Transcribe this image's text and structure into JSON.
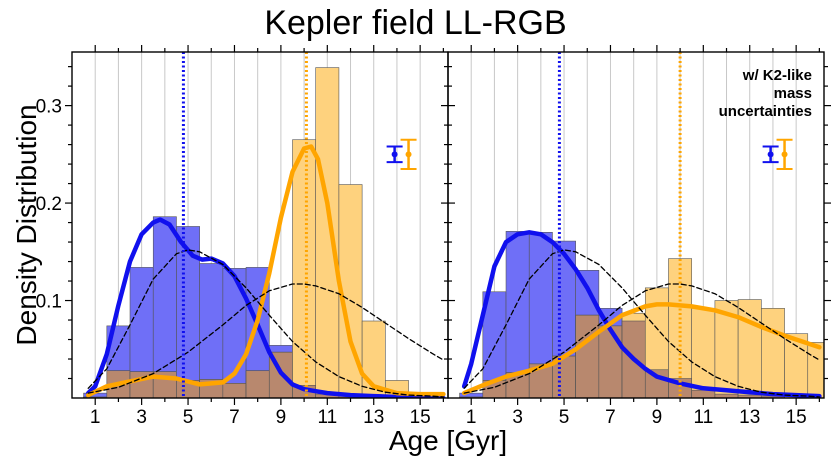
{
  "title": "Kepler field LL-RGB",
  "colors": {
    "blue": "#1010ee",
    "blue_fill": "#6f6ff7",
    "orange": "#ffa500",
    "orange_fill": "#fed27e",
    "overlap_fill": "#b8886e",
    "grid": "#c8c8c8"
  },
  "chart_data": [
    {
      "type": "bar",
      "panel": "left",
      "xlabel": "Age [Gyr]",
      "ylabel": "Density Distribution",
      "xlim": [
        0,
        16.2
      ],
      "ylim": [
        0,
        0.355
      ],
      "xticks": [
        1,
        3,
        5,
        7,
        9,
        11,
        13,
        15
      ],
      "yticks": [
        0.1,
        0.2,
        0.3
      ],
      "grid_x": [
        1,
        2,
        3,
        4,
        5,
        6,
        7,
        8,
        9,
        10,
        11,
        12,
        13,
        14,
        15
      ],
      "bin_edges": [
        0.5,
        1.5,
        2.5,
        3.5,
        4.5,
        5.5,
        6.5,
        7.5,
        8.5,
        9.5,
        10.5,
        11.5,
        12.5,
        13.5,
        14.5,
        15.5
      ],
      "series": [
        {
          "values": [
            0.005,
            0.074,
            0.134,
            0.186,
            0.176,
            0.138,
            0.133,
            0.134,
            0.054,
            0.013,
            0.004,
            0.002,
            0.001,
            0.0,
            0.0
          ],
          "color": "blue"
        },
        {
          "values": [
            0.001,
            0.028,
            0.027,
            0.027,
            0.018,
            0.019,
            0.015,
            0.028,
            0.047,
            0.265,
            0.339,
            0.219,
            0.079,
            0.018,
            0.005
          ],
          "color": "orange"
        }
      ],
      "kde_curves": [
        {
          "color": "blue",
          "style": "solid",
          "x": [
            0.7,
            1.0,
            1.5,
            2.0,
            2.5,
            3.0,
            3.5,
            3.8,
            4.2,
            4.7,
            5.2,
            5.6,
            6.0,
            6.5,
            7.0,
            7.5,
            8.0,
            8.5,
            9.0,
            9.5,
            10.0,
            10.5,
            11.0,
            12.0,
            13.0,
            14.0,
            15.0,
            16.0
          ],
          "y": [
            0.005,
            0.012,
            0.045,
            0.095,
            0.14,
            0.168,
            0.18,
            0.183,
            0.178,
            0.16,
            0.146,
            0.142,
            0.143,
            0.138,
            0.125,
            0.102,
            0.075,
            0.047,
            0.026,
            0.014,
            0.009,
            0.007,
            0.005,
            0.003,
            0.002,
            0.001,
            0.0,
            0.0
          ]
        },
        {
          "color": "orange",
          "style": "solid",
          "x": [
            0.7,
            1.5,
            2.5,
            3.5,
            4.5,
            5.5,
            6.5,
            7.0,
            7.5,
            8.0,
            8.5,
            9.0,
            9.5,
            10.0,
            10.3,
            10.6,
            11.0,
            11.5,
            12.0,
            12.5,
            13.0,
            14.0,
            15.0,
            16.0
          ],
          "y": [
            0.003,
            0.012,
            0.017,
            0.022,
            0.02,
            0.014,
            0.016,
            0.025,
            0.045,
            0.08,
            0.128,
            0.185,
            0.232,
            0.256,
            0.258,
            0.245,
            0.2,
            0.12,
            0.058,
            0.025,
            0.012,
            0.005,
            0.004,
            0.004
          ]
        },
        {
          "color": "black",
          "style": "dashed",
          "x": [
            0.7,
            1.5,
            2.5,
            3.5,
            4.5,
            5.0,
            5.5,
            6.5,
            7.5,
            8.5,
            9.5,
            10.5,
            11.5,
            12.5,
            13.5,
            14.5,
            15.5,
            16.0
          ],
          "y": [
            0.01,
            0.03,
            0.075,
            0.122,
            0.148,
            0.152,
            0.15,
            0.137,
            0.113,
            0.085,
            0.058,
            0.037,
            0.022,
            0.012,
            0.006,
            0.003,
            0.002,
            0.001
          ]
        },
        {
          "color": "black",
          "style": "dashed",
          "x": [
            0.7,
            2.0,
            3.5,
            5.0,
            6.5,
            7.5,
            8.5,
            9.5,
            10.0,
            10.5,
            11.5,
            12.5,
            13.5,
            14.5,
            15.5,
            16.0
          ],
          "y": [
            0.005,
            0.011,
            0.025,
            0.047,
            0.075,
            0.095,
            0.11,
            0.117,
            0.117,
            0.115,
            0.107,
            0.093,
            0.077,
            0.061,
            0.046,
            0.039
          ]
        }
      ],
      "vlines": [
        {
          "x": 4.8,
          "color": "blue"
        },
        {
          "x": 10.1,
          "color": "orange"
        }
      ],
      "error_bars": [
        {
          "x": 13.9,
          "y": 0.25,
          "err": 0.008,
          "color": "blue"
        },
        {
          "x": 14.5,
          "y": 0.25,
          "err": 0.015,
          "color": "orange"
        }
      ],
      "annotation": ""
    },
    {
      "type": "bar",
      "panel": "right",
      "xlabel": "Age [Gyr]",
      "ylabel": "",
      "xlim": [
        0,
        16.2
      ],
      "ylim": [
        0,
        0.355
      ],
      "xticks": [
        1,
        3,
        5,
        7,
        9,
        11,
        13,
        15
      ],
      "yticks": [
        0.1,
        0.2,
        0.3
      ],
      "grid_x": [
        1,
        2,
        3,
        4,
        5,
        6,
        7,
        8,
        9,
        10,
        11,
        12,
        13,
        14,
        15
      ],
      "bin_edges": [
        0.5,
        1.5,
        2.5,
        3.5,
        4.5,
        5.5,
        6.5,
        7.5,
        8.5,
        9.5,
        10.5,
        11.5,
        12.5,
        13.5,
        14.5,
        15.5,
        16.5
      ],
      "series": [
        {
          "values": [
            0.005,
            0.109,
            0.171,
            0.17,
            0.161,
            0.131,
            0.092,
            0.079,
            0.029,
            0.02,
            0.008,
            0.004,
            0.003,
            0.002,
            0.0,
            0.0
          ],
          "color": "blue"
        },
        {
          "values": [
            0.001,
            0.018,
            0.026,
            0.035,
            0.043,
            0.085,
            0.074,
            0.087,
            0.113,
            0.143,
            0.092,
            0.1,
            0.101,
            0.092,
            0.066,
            0.057
          ],
          "color": "orange"
        }
      ],
      "kde_curves": [
        {
          "color": "blue",
          "style": "solid",
          "x": [
            0.7,
            1.0,
            1.5,
            2.0,
            2.5,
            3.0,
            3.5,
            4.0,
            4.5,
            5.0,
            5.5,
            6.0,
            6.5,
            7.0,
            7.5,
            8.0,
            8.5,
            9.0,
            10.0,
            11.0,
            12.0,
            13.0,
            14.0,
            15.0,
            16.0
          ],
          "y": [
            0.012,
            0.035,
            0.085,
            0.135,
            0.16,
            0.168,
            0.17,
            0.168,
            0.16,
            0.148,
            0.132,
            0.113,
            0.09,
            0.07,
            0.052,
            0.04,
            0.03,
            0.022,
            0.015,
            0.01,
            0.008,
            0.006,
            0.004,
            0.003,
            0.002
          ]
        },
        {
          "color": "orange",
          "style": "solid",
          "x": [
            0.7,
            1.5,
            2.5,
            3.5,
            4.5,
            5.5,
            6.5,
            7.5,
            8.5,
            9.0,
            9.5,
            10.5,
            11.5,
            12.5,
            13.5,
            14.5,
            15.5,
            16.0
          ],
          "y": [
            0.005,
            0.013,
            0.022,
            0.028,
            0.035,
            0.05,
            0.068,
            0.085,
            0.094,
            0.096,
            0.096,
            0.094,
            0.09,
            0.083,
            0.073,
            0.064,
            0.056,
            0.052
          ]
        },
        {
          "color": "black",
          "style": "dashed",
          "x": [
            0.7,
            1.5,
            2.5,
            3.5,
            4.5,
            5.0,
            5.5,
            6.5,
            7.5,
            8.5,
            9.5,
            10.5,
            11.5,
            12.5,
            13.5,
            14.5,
            15.5,
            16.0
          ],
          "y": [
            0.01,
            0.03,
            0.075,
            0.122,
            0.148,
            0.152,
            0.15,
            0.137,
            0.113,
            0.085,
            0.058,
            0.037,
            0.022,
            0.012,
            0.006,
            0.003,
            0.002,
            0.001
          ]
        },
        {
          "color": "black",
          "style": "dashed",
          "x": [
            0.7,
            2.0,
            3.5,
            5.0,
            6.5,
            7.5,
            8.5,
            9.5,
            10.0,
            10.5,
            11.5,
            12.5,
            13.5,
            14.5,
            15.5,
            16.0
          ],
          "y": [
            0.005,
            0.011,
            0.025,
            0.047,
            0.075,
            0.095,
            0.11,
            0.117,
            0.117,
            0.115,
            0.107,
            0.093,
            0.077,
            0.061,
            0.046,
            0.039
          ]
        }
      ],
      "vlines": [
        {
          "x": 4.8,
          "color": "blue"
        },
        {
          "x": 10.0,
          "color": "orange"
        }
      ],
      "error_bars": [
        {
          "x": 13.9,
          "y": 0.25,
          "err": 0.008,
          "color": "blue"
        },
        {
          "x": 14.5,
          "y": 0.25,
          "err": 0.015,
          "color": "orange"
        }
      ],
      "annotation": [
        "w/ K2-like",
        "mass",
        "uncertainties"
      ]
    }
  ]
}
